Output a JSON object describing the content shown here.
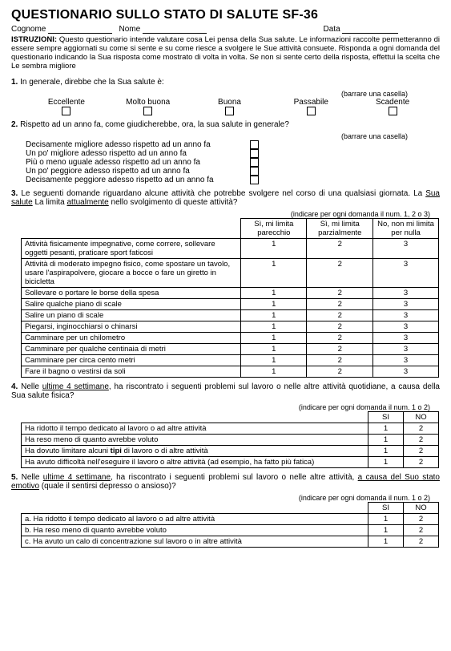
{
  "title": "QUESTIONARIO SULLO STATO DI SALUTE SF-36",
  "fields": {
    "surname": "Cognome",
    "name": "Nome",
    "date": "Data"
  },
  "instr_label": "ISTRUZIONI:",
  "instr_text": "Questo questionario intende valutare cosa Lei pensa della Sua salute. Le informazioni raccolte permetteranno di essere sempre aggiornati su come si sente e su come riesce a svolgere le Sue attività consuete. Risponda a ogni domanda del questionario indicando la Sua risposta come mostrato di volta in volta. Se non si sente certo della risposta, effettui la scelta che Le sembra migliore",
  "q1": {
    "num": "1.",
    "text": "In generale, direbbe che la Sua salute è:",
    "hint": "(barrare una casella)",
    "opts": [
      "Eccellente",
      "Molto buona",
      "Buona",
      "Passabile",
      "Scadente"
    ]
  },
  "q2": {
    "num": "2.",
    "text": "Rispetto ad un anno fa, come giudicherebbe, ora, la sua salute in generale?",
    "hint": "(barrare una casella)",
    "items": [
      "Decisamente migliore adesso rispetto ad un anno fa",
      "Un po' migliore adesso rispetto ad un anno fa",
      "Più o meno uguale adesso rispetto ad un anno fa",
      "Un po' peggiore adesso rispetto ad un anno fa",
      "Decisamente peggiore adesso rispetto ad un anno fa"
    ]
  },
  "q3": {
    "num": "3.",
    "pre": "Le seguenti domande riguardano alcune attività che potrebbe svolgere nel corso di una qualsiasi giornata. ",
    "mid1": "La ",
    "u1": "Sua salute",
    "mid2": " La limita ",
    "u2": "attualmente",
    "post": " nello svolgimento di queste attività?",
    "hint": "(indicare per ogni domanda il num. 1, 2 o 3)",
    "headers": [
      "Sì, mi limita parecchio",
      "Sì, mi limita parzialmente",
      "No, non mi limita per nulla"
    ],
    "rows": [
      "Attività fisicamente impegnative, come correre, sollevare oggetti pesanti, praticare sport faticosi",
      "Attività di moderato impegno fisico, come spostare un tavolo, usare l'aspirapolvere, giocare a bocce o fare un giretto in bicicletta",
      "Sollevare o portare le borse della spesa",
      "Salire qualche piano di scale",
      "Salire un piano di scale",
      "Piegarsi, inginocchiarsi o chinarsi",
      "Camminare per un chilometro",
      "Camminare per qualche centinaia di metri",
      "Camminare per circa cento metri",
      "Fare il bagno o vestirsi da soli"
    ],
    "vals": [
      "1",
      "2",
      "3"
    ]
  },
  "q4": {
    "num": "4.",
    "pre": "Nelle ",
    "u1": "ultime 4 settimane",
    "post": ", ha riscontrato i seguenti problemi sul lavoro o nelle altre attività quotidiane, a causa della Sua salute fisica?",
    "hint": "(indicare per ogni domanda il num. 1 o 2)",
    "headers": [
      "SI",
      "NO"
    ],
    "rows": [
      {
        "t": "Ha ridotto il tempo dedicato al lavoro o ad altre attività",
        "b": ""
      },
      {
        "t": "Ha reso meno di quanto avrebbe voluto",
        "b": ""
      },
      {
        "t": "Ha dovuto limitare alcuni ",
        "b": "tipi",
        "t2": " di lavoro o di altre attività"
      },
      {
        "t": "Ha avuto difficoltà nell'eseguire il lavoro o altre attività (ad esempio, ha fatto più fatica)",
        "b": ""
      }
    ],
    "vals": [
      "1",
      "2"
    ]
  },
  "q5": {
    "num": "5.",
    "pre": "Nelle ",
    "u1": "ultime 4 settimane",
    "mid": ", ha riscontrato i seguenti problemi sul lavoro o nelle altre attività, ",
    "u2": "a causa del Suo stato emotivo",
    "post": " (quale il sentirsi depresso o ansioso)?",
    "hint": "(indicare per ogni domanda il num. 1 o 2)",
    "headers": [
      "SI",
      "NO"
    ],
    "rows": [
      "a. Ha ridotto il tempo dedicato al lavoro o ad altre attività",
      "b. Ha reso meno di quanto avrebbe voluto",
      "c. Ha avuto un calo di concentrazione sul lavoro o in altre attività"
    ],
    "vals": [
      "1",
      "2"
    ]
  }
}
